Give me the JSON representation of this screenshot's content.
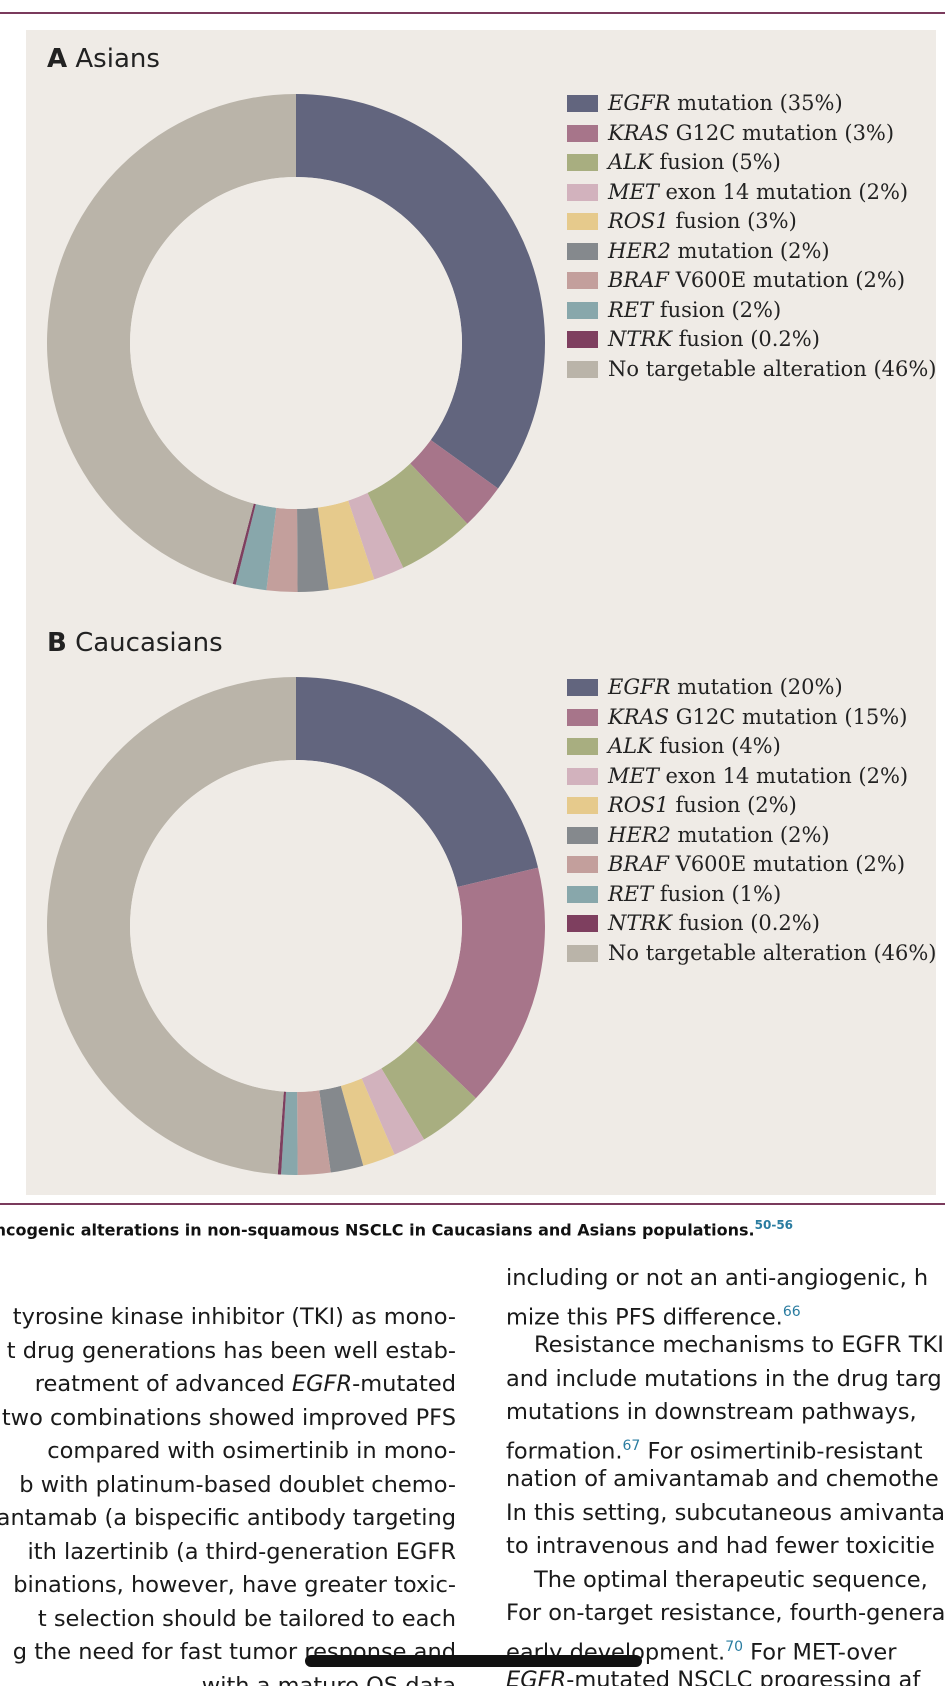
{
  "figure": {
    "panel_a": {
      "letter": "A",
      "title": "Asians"
    },
    "panel_b": {
      "letter": "B",
      "title": "Caucasians"
    },
    "colors": {
      "EGFR": "#62657e",
      "KRAS": "#a7758a",
      "ALK": "#a8ae80",
      "MET": "#d2b2bd",
      "ROS1": "#e6ca8c",
      "HER2": "#85898d",
      "BRAF": "#c39f9c",
      "RET": "#88a7ab",
      "NTRK": "#7e3f5f",
      "NONE": "#bab4a9"
    }
  },
  "chart_data": [
    {
      "type": "pie",
      "title": "Asians",
      "categories": [
        "EGFR mutation",
        "KRAS G12C mutation",
        "ALK fusion",
        "MET exon 14 mutation",
        "ROS1 fusion",
        "HER2 mutation",
        "BRAF V600E mutation",
        "RET fusion",
        "NTRK fusion",
        "No targetable alteration"
      ],
      "values": [
        35,
        3,
        5,
        2,
        3,
        2,
        2,
        2,
        0.2,
        46
      ],
      "legend_labels": [
        {
          "gene": "EGFR",
          "rest": " mutation (35%)",
          "key": "EGFR"
        },
        {
          "gene": "KRAS",
          "rest": " G12C mutation (3%)",
          "key": "KRAS"
        },
        {
          "gene": "ALK",
          "rest": " fusion (5%)",
          "key": "ALK"
        },
        {
          "gene": "MET",
          "rest": " exon 14 mutation (2%)",
          "key": "MET"
        },
        {
          "gene": "ROS1",
          "rest": " fusion (3%)",
          "key": "ROS1"
        },
        {
          "gene": "HER2",
          "rest": " mutation (2%)",
          "key": "HER2"
        },
        {
          "gene": "BRAF",
          "rest": " V600E mutation (2%)",
          "key": "BRAF"
        },
        {
          "gene": "RET",
          "rest": " fusion (2%)",
          "key": "RET"
        },
        {
          "gene": "NTRK",
          "rest": " fusion (0.2%)",
          "key": "NTRK"
        },
        {
          "gene": "",
          "rest": "No targetable alteration (46%)",
          "key": "NONE"
        }
      ],
      "legend_position": "right"
    },
    {
      "type": "pie",
      "title": "Caucasians",
      "categories": [
        "EGFR mutation",
        "KRAS G12C mutation",
        "ALK fusion",
        "MET exon 14 mutation",
        "ROS1 fusion",
        "HER2 mutation",
        "BRAF V600E mutation",
        "RET fusion",
        "NTRK fusion",
        "No targetable alteration"
      ],
      "values": [
        20,
        15,
        4,
        2,
        2,
        2,
        2,
        1,
        0.2,
        46
      ],
      "legend_labels": [
        {
          "gene": "EGFR",
          "rest": " mutation (20%)",
          "key": "EGFR"
        },
        {
          "gene": "KRAS",
          "rest": " G12C mutation (15%)",
          "key": "KRAS"
        },
        {
          "gene": "ALK",
          "rest": " fusion (4%)",
          "key": "ALK"
        },
        {
          "gene": "MET",
          "rest": " exon 14 mutation (2%)",
          "key": "MET"
        },
        {
          "gene": "ROS1",
          "rest": " fusion (2%)",
          "key": "ROS1"
        },
        {
          "gene": "HER2",
          "rest": " mutation (2%)",
          "key": "HER2"
        },
        {
          "gene": "BRAF",
          "rest": " V600E mutation (2%)",
          "key": "BRAF"
        },
        {
          "gene": "RET",
          "rest": " fusion (1%)",
          "key": "RET"
        },
        {
          "gene": "NTRK",
          "rest": " fusion (0.2%)",
          "key": "NTRK"
        },
        {
          "gene": "",
          "rest": "No targetable alteration (46%)",
          "key": "NONE"
        }
      ],
      "legend_position": "right"
    }
  ],
  "caption": {
    "text": "Oncogenic alterations in non-squamous NSCLC in Caucasians and Asians populations.",
    "refs": "50-56"
  },
  "left_column": [
    {
      "text": "tyrosine kinase inhibitor (TKI) as mono-"
    },
    {
      "text": "t drug generations has been well estab-"
    },
    {
      "pre": "reatment of advanced ",
      "ital": "EGFR",
      "post": "-mutated"
    },
    {
      "text": "two combinations showed improved PFS"
    },
    {
      "text": "compared with osimertinib in mono-"
    },
    {
      "text": "b with platinum-based doublet chemo-"
    },
    {
      "text": "antamab (a bispecific antibody targeting"
    },
    {
      "text": "ith lazertinib (a third-generation EGFR"
    },
    {
      "text": "binations, however, have greater toxic-"
    },
    {
      "text": "t selection should be tailored to each"
    },
    {
      "text": "g the need for fast tumor response and"
    },
    {
      "text": "with a mature OS data"
    }
  ],
  "right_column": [
    {
      "text": "including or not an anti-angiogenic, h"
    },
    {
      "text": "mize this PFS difference.",
      "ref": "66"
    },
    {
      "text": "Resistance mechanisms to EGFR TKI",
      "indent": true
    },
    {
      "text": "and include mutations in the drug targ"
    },
    {
      "text": "mutations in downstream pathways,"
    },
    {
      "text": "formation.",
      "ref": "67",
      "after": " For osimertinib-resistant"
    },
    {
      "text": "nation of amivantamab and chemothe"
    },
    {
      "text": "In this setting, subcutaneous amivantam"
    },
    {
      "text": "to intravenous and had fewer toxicitie"
    },
    {
      "text": "The optimal therapeutic sequence,",
      "indent": true
    },
    {
      "text": "For on-target resistance, fourth-genera"
    },
    {
      "text": "early development.",
      "ref": "70",
      "after": " For MET-over"
    },
    {
      "ital": "EGFR",
      "text": "-mutated NSCLC progressing af"
    }
  ]
}
